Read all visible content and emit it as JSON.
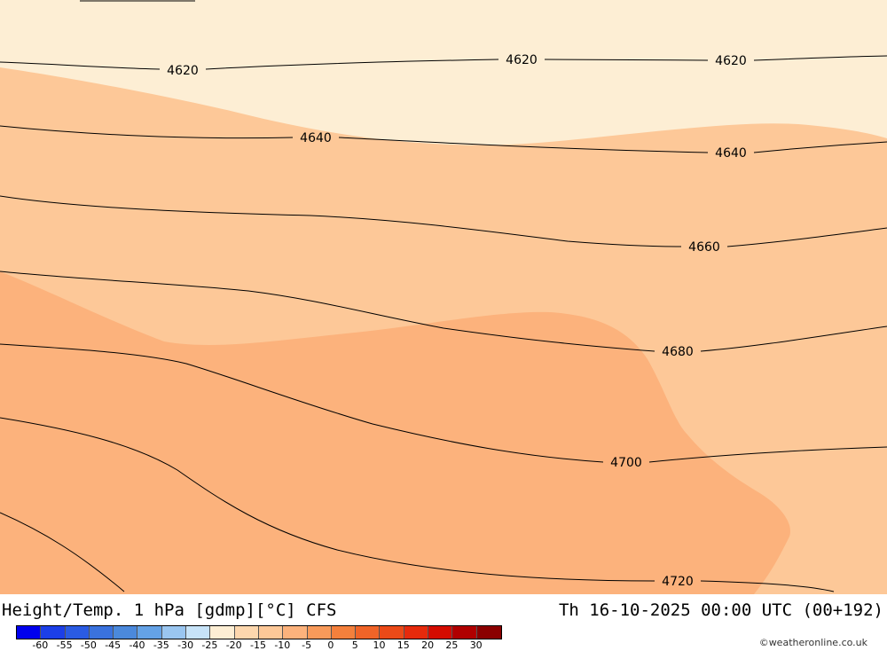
{
  "map": {
    "fill_colors": {
      "band_lightest": "#fdeed4",
      "band_light": "#fdc898",
      "band_mid": "#fcb27c",
      "contour": "#000000"
    },
    "contour_labels": [
      "4620",
      "4620",
      "4620",
      "4640",
      "4640",
      "4660",
      "4680",
      "4700",
      "4720"
    ]
  },
  "footer": {
    "title_left": "Height/Temp. 1 hPa [gdmp][°C] CFS",
    "title_right": "Th 16-10-2025 00:00 UTC (00+192)",
    "credit": "©weatheronline.co.uk",
    "colorbar": {
      "colors": [
        "#0000ee",
        "#1c3fe8",
        "#2a5be3",
        "#3a72de",
        "#4b89dc",
        "#64a2e6",
        "#9ac6f0",
        "#c7e3f8",
        "#fdeed4",
        "#fdd7ae",
        "#fdc898",
        "#fcb27c",
        "#f89a5a",
        "#f4803c",
        "#f06428",
        "#eb4a18",
        "#e62a0c",
        "#d40c00",
        "#b00000",
        "#8b0000"
      ],
      "tick_labels": [
        "-60",
        "-55",
        "-50",
        "-45",
        "-40",
        "-35",
        "-30",
        "-25",
        "-20",
        "-15",
        "-10",
        "-5",
        "0",
        "5",
        "10",
        "15",
        "20",
        "25",
        "30"
      ]
    }
  }
}
